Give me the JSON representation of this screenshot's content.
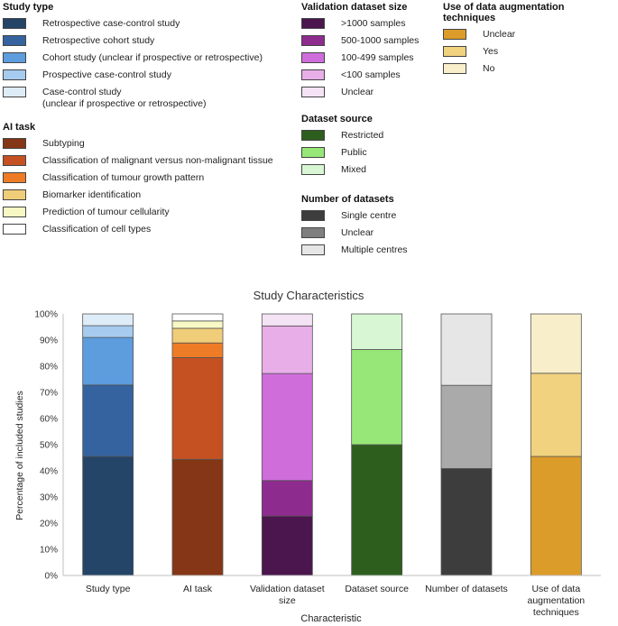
{
  "legends": {
    "study_type": {
      "title": "Study type",
      "items": [
        {
          "label": "Retrospective case-control study",
          "color": "#244468"
        },
        {
          "label": "Retrospective cohort study",
          "color": "#3563a0"
        },
        {
          "label": "Cohort study (unclear if prospective or retrospective)",
          "color": "#5d9cdd"
        },
        {
          "label": "Prospective case-control study",
          "color": "#a7cbee"
        },
        {
          "label": "Case-control study",
          "sublabel": "(unclear if prospective or retrospective)",
          "color": "#deecf8"
        }
      ]
    },
    "ai_task": {
      "title": "AI task",
      "items": [
        {
          "label": "Subtyping",
          "color": "#843617"
        },
        {
          "label": "Classification of malignant versus non-malignant tissue",
          "color": "#c55122"
        },
        {
          "label": "Classification of tumour growth pattern",
          "color": "#ee7c26"
        },
        {
          "label": "Biomarker identification",
          "color": "#f0cd78"
        },
        {
          "label": "Prediction of tumour cellularity",
          "color": "#f7f8c4"
        },
        {
          "label": "Classification of cell types",
          "color": "#ffffff"
        }
      ]
    },
    "validation_size": {
      "title": "Validation dataset size",
      "items": [
        {
          "label": ">1000 samples",
          "color": "#4a164d"
        },
        {
          "label": "500-1000 samples",
          "color": "#8e2b8f"
        },
        {
          "label": "100-499 samples",
          "color": "#cf6ddb"
        },
        {
          "label": "<100 samples",
          "color": "#e8aee8"
        },
        {
          "label": "Unclear",
          "color": "#f4e3f4"
        }
      ]
    },
    "dataset_source": {
      "title": "Dataset source",
      "items": [
        {
          "label": "Restricted",
          "color": "#2e5e1e"
        },
        {
          "label": "Public",
          "color": "#96e777"
        },
        {
          "label": "Mixed",
          "color": "#d9f6d4"
        }
      ]
    },
    "num_datasets": {
      "title": "Number of datasets",
      "items": [
        {
          "label": "Single centre",
          "color": "#3d3d3d"
        },
        {
          "label": "Unclear",
          "color": "#7f7f7f"
        },
        {
          "label": "Multiple centres",
          "color": "#e6e6e6"
        }
      ]
    },
    "augmentation": {
      "title": "Use of data augmentation techniques",
      "items": [
        {
          "label": "Unclear",
          "color": "#dc9c2a"
        },
        {
          "label": "Yes",
          "color": "#f0d27f"
        },
        {
          "label": "No",
          "color": "#f8eeca"
        }
      ]
    }
  },
  "chart_data": {
    "type": "bar",
    "stacked": true,
    "title": "Study Characteristics",
    "xlabel": "Characteristic",
    "ylabel": "Percentage of included studies",
    "ylim": [
      0,
      100
    ],
    "yticks": [
      "0%",
      "10%",
      "20%",
      "30%",
      "40%",
      "50%",
      "60%",
      "70%",
      "80%",
      "90%",
      "100%"
    ],
    "categories": [
      [
        "Study type"
      ],
      [
        "AI task"
      ],
      [
        "Validation dataset",
        "size"
      ],
      [
        "Dataset source"
      ],
      [
        "Number of datasets"
      ],
      [
        "Use of data",
        "augmentation",
        "techniques"
      ]
    ],
    "stacks": [
      [
        {
          "name": "Retrospective case-control study",
          "value": 45.5,
          "color": "#244468"
        },
        {
          "name": "Retrospective cohort study",
          "value": 27.3,
          "color": "#3563a0"
        },
        {
          "name": "Cohort study (unclear if prospective or retrospective)",
          "value": 18.2,
          "color": "#5d9cdd"
        },
        {
          "name": "Prospective case-control study",
          "value": 4.5,
          "color": "#a7cbee"
        },
        {
          "name": "Case-control study (unclear if prospective or retrospective)",
          "value": 4.5,
          "color": "#deecf8"
        }
      ],
      [
        {
          "name": "Subtyping",
          "value": 44.4,
          "color": "#843617"
        },
        {
          "name": "Classification of malignant versus non-malignant tissue",
          "value": 38.9,
          "color": "#c55122"
        },
        {
          "name": "Classification of tumour growth pattern",
          "value": 5.6,
          "color": "#ee7c26"
        },
        {
          "name": "Biomarker identification",
          "value": 5.6,
          "color": "#f0cd78"
        },
        {
          "name": "Prediction of tumour cellularity",
          "value": 2.8,
          "color": "#f7f8c4"
        },
        {
          "name": "Classification of cell types",
          "value": 2.7,
          "color": "#ffffff"
        }
      ],
      [
        {
          "name": ">1000 samples",
          "value": 22.7,
          "color": "#4a164d"
        },
        {
          "name": "500-1000 samples",
          "value": 13.6,
          "color": "#8e2b8f"
        },
        {
          "name": "100-499 samples",
          "value": 40.9,
          "color": "#cf6ddb"
        },
        {
          "name": "<100 samples",
          "value": 18.2,
          "color": "#e8aee8"
        },
        {
          "name": "Unclear",
          "value": 4.6,
          "color": "#f4e3f4"
        }
      ],
      [
        {
          "name": "Restricted",
          "value": 50.0,
          "color": "#2e5e1e"
        },
        {
          "name": "Public",
          "value": 36.4,
          "color": "#96e777"
        },
        {
          "name": "Mixed",
          "value": 13.6,
          "color": "#d9f6d4"
        }
      ],
      [
        {
          "name": "Single centre",
          "value": 40.9,
          "color": "#3d3d3d"
        },
        {
          "name": "Unclear",
          "value": 31.8,
          "color": "#aaaaaa"
        },
        {
          "name": "Multiple centres",
          "value": 27.3,
          "color": "#e6e6e6"
        }
      ],
      [
        {
          "name": "Unclear",
          "value": 45.5,
          "color": "#dc9c2a"
        },
        {
          "name": "Yes",
          "value": 31.8,
          "color": "#f0d27f"
        },
        {
          "name": "No",
          "value": 22.7,
          "color": "#f8eeca"
        }
      ]
    ]
  }
}
